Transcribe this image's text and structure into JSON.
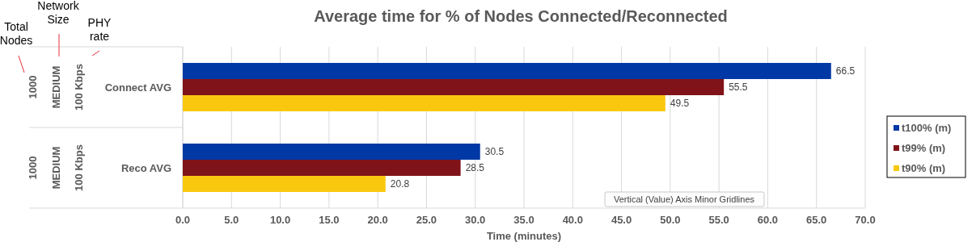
{
  "chart_data": {
    "type": "bar",
    "orientation": "horizontal",
    "title": "Average time for % of Nodes Connected/Reconnected",
    "xlabel": "Time (minutes)",
    "categories": [
      "Connect AVG",
      "Reco AVG"
    ],
    "series": [
      {
        "name": "t100% (m)",
        "color": "#0039a6",
        "values": [
          66.5,
          30.5
        ]
      },
      {
        "name": "t99% (m)",
        "color": "#7f1319",
        "values": [
          55.5,
          28.5
        ]
      },
      {
        "name": "t90% (m)",
        "color": "#f9c80e",
        "values": [
          49.5,
          20.8
        ]
      }
    ],
    "xlim": [
      0,
      70
    ],
    "xticks": [
      {
        "value": 0,
        "label": "0.0"
      },
      {
        "value": 5,
        "label": "5.0"
      },
      {
        "value": 10,
        "label": "10.0"
      },
      {
        "value": 15,
        "label": "15.0"
      },
      {
        "value": 20,
        "label": "20.0"
      },
      {
        "value": 25,
        "label": "25.0"
      },
      {
        "value": 30,
        "label": "30.0"
      },
      {
        "value": 35,
        "label": "35.0"
      },
      {
        "value": 40,
        "label": "40.0"
      },
      {
        "value": 45,
        "label": "45.0"
      },
      {
        "value": 50,
        "label": "50.0"
      },
      {
        "value": 55,
        "label": "55.0"
      },
      {
        "value": 60,
        "label": "60.0"
      },
      {
        "value": 65,
        "label": "65.0"
      },
      {
        "value": 70,
        "label": "70.0"
      }
    ],
    "grid": "x",
    "data_labels": true,
    "legend": "right",
    "annotations": [
      "Total Nodes",
      "Network Size",
      "PHY rate",
      "1000",
      "MEDIUM",
      "100 Kbps",
      "1000",
      "MEDIUM",
      "100 Kbps",
      "Vertical (Value) Axis Minor Gridlines"
    ]
  }
}
